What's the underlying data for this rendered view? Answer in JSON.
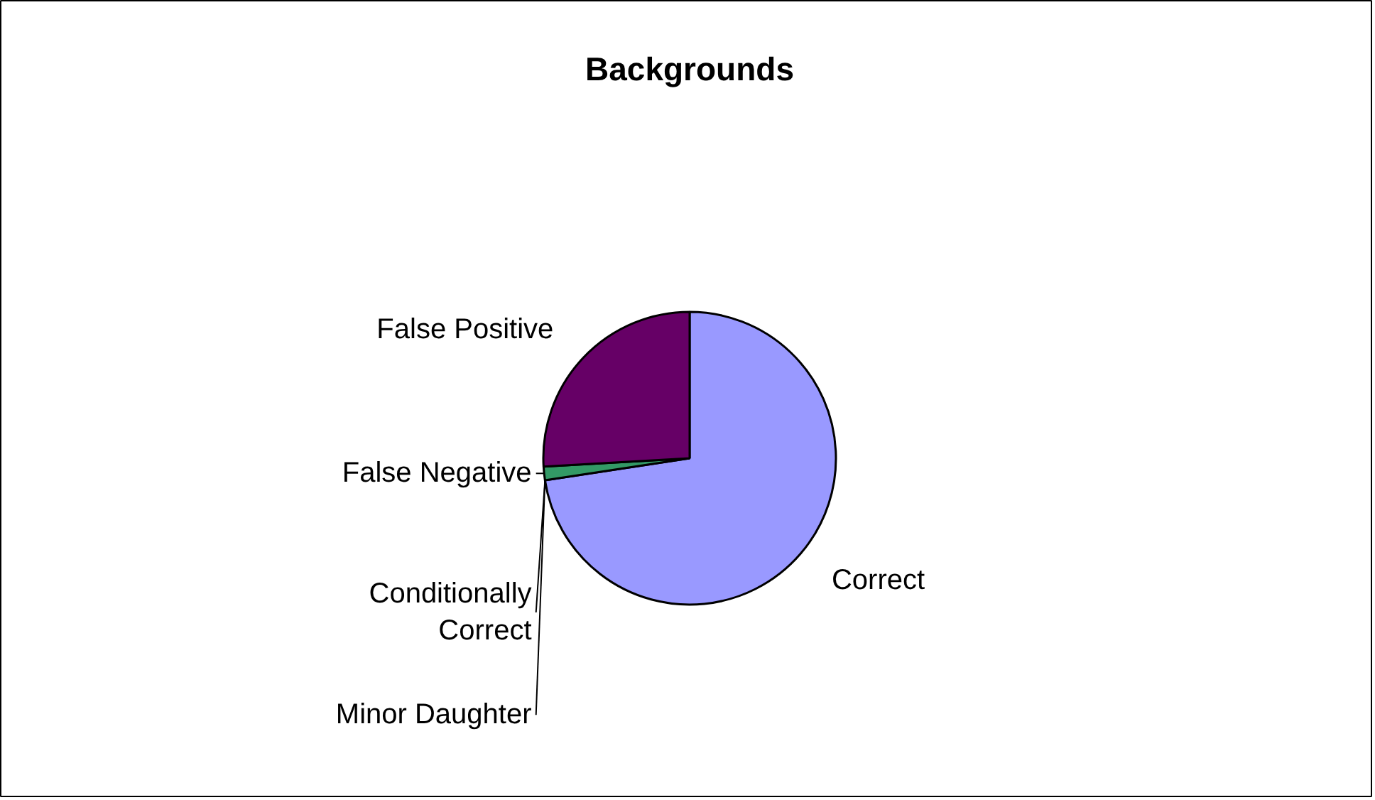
{
  "chart_data": {
    "type": "pie",
    "title": "Backgrounds",
    "categories": [
      "Correct",
      "Conditionally\nCorrect",
      "Minor Daughter",
      "False Negative",
      "False Positive"
    ],
    "values": [
      72.6,
      null,
      null,
      1.5,
      25.9
    ],
    "colors": [
      "#9999ff",
      "#993366",
      "#ffffcc",
      "#339966",
      "#660066"
    ]
  }
}
